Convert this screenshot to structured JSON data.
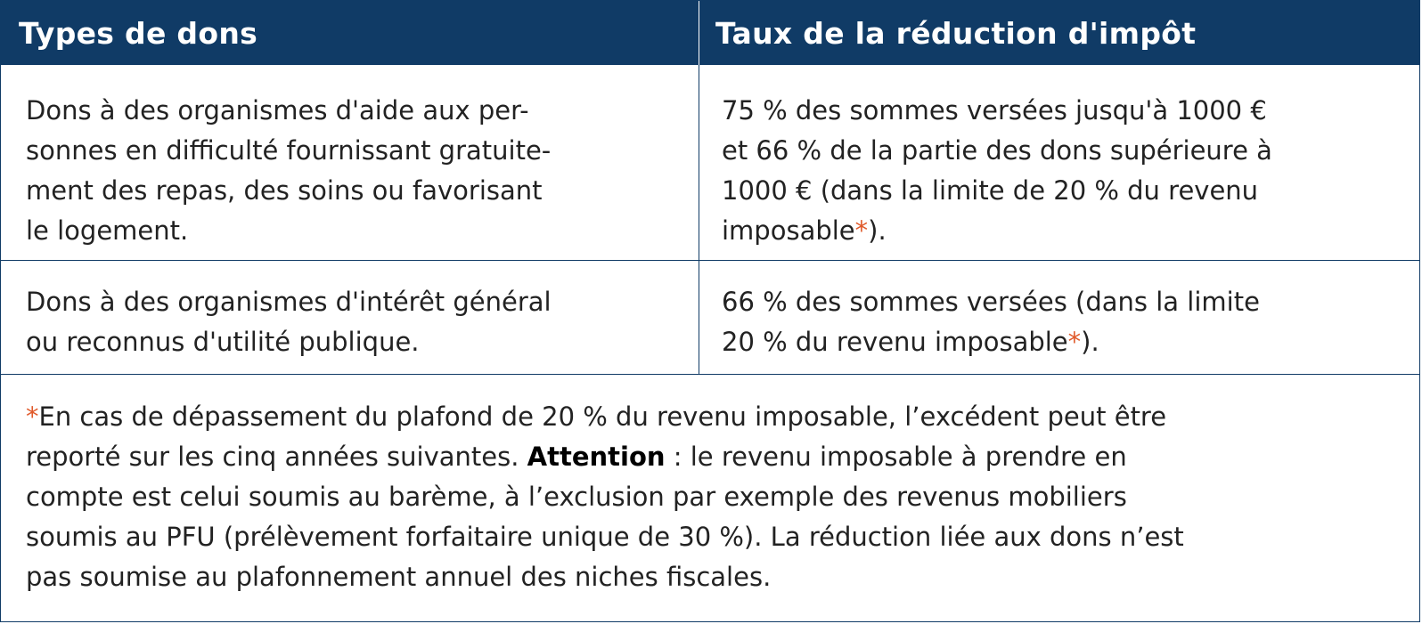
{
  "colors": {
    "header_bg": "#103b66",
    "header_text": "#ffffff",
    "asterisk": "#e05a2b"
  },
  "header": {
    "col1": "Types de dons",
    "col2": "Taux de la réduction d'impôt"
  },
  "rows": [
    {
      "type_lines": [
        "Dons à des organismes d'aide aux per-",
        "sonnes en difficulté fournissant gratuite-",
        "ment des repas, des soins ou favorisant",
        "le logement."
      ],
      "rate_lines": [
        "75 % des sommes versées jusqu'à 1000 €",
        "et 66 % de la partie des dons supérieure à",
        "1000 € (dans la limite de 20 % du revenu"
      ],
      "rate_last_before": "imposable",
      "rate_last_after": ")."
    },
    {
      "type_lines": [
        "Dons à des organismes d'intérêt général",
        "ou reconnus d'utilité publique."
      ],
      "rate_lines": [
        "66 % des sommes versées (dans la limite"
      ],
      "rate_last_before": "20 % du revenu imposable",
      "rate_last_after": ")."
    }
  ],
  "asterisk": "*",
  "note": {
    "line1": "En cas de dépassement du plafond de 20 % du revenu imposable, l’excédent peut être",
    "line2_before": "reporté sur les cinq années suivantes. ",
    "line2_bold": "Attention",
    "line2_after": " : le revenu imposable à prendre en",
    "line3": "compte est celui soumis au barème, à l’exclusion par exemple des revenus mobiliers",
    "line4": "soumis au PFU (prélèvement forfaitaire unique de 30 %). La réduction liée aux dons n’est",
    "line5": "pas soumise au plafonnement annuel des niches fiscales."
  }
}
